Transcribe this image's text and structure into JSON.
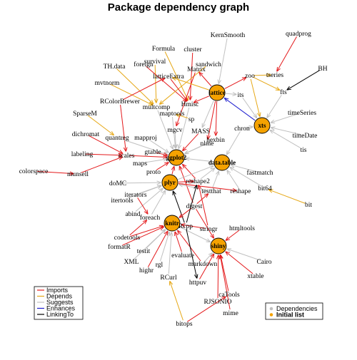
{
  "title": "Package dependency graph",
  "colors": {
    "Imports": "#e41a1c",
    "Depends": "#e6a817",
    "Suggests": "#c0c0c0",
    "Enhances": "#1f1fcf",
    "LinkingTo": "#000000",
    "initial_fill": "#f5a200",
    "dependency_dot": "#c0c0c0"
  },
  "edge_legend": [
    {
      "label": "Imports",
      "type": "Imports"
    },
    {
      "label": "Depends",
      "type": "Depends"
    },
    {
      "label": "Suggests",
      "type": "Suggests"
    },
    {
      "label": "Enhances",
      "type": "Enhances"
    },
    {
      "label": "LinkingTo",
      "type": "LinkingTo"
    }
  ],
  "node_legend": [
    {
      "label": "Dependencies",
      "kind": "dependency",
      "bold": false
    },
    {
      "label": "Initial list",
      "kind": "initial",
      "bold": true
    }
  ],
  "packages": [
    {
      "id": "ggplot2",
      "label": "ggplot2",
      "initial": true
    },
    {
      "id": "lattice",
      "label": "lattice",
      "initial": true
    },
    {
      "id": "xts",
      "label": "xts",
      "initial": true
    },
    {
      "id": "data.table",
      "label": "data.table",
      "initial": true
    },
    {
      "id": "plyr",
      "label": "plyr",
      "initial": true
    },
    {
      "id": "knitr",
      "label": "knitr",
      "initial": true
    },
    {
      "id": "shiny",
      "label": "shiny",
      "initial": true
    },
    {
      "id": "KernSmooth",
      "label": "KernSmooth"
    },
    {
      "id": "quadprog",
      "label": "quadprog"
    },
    {
      "id": "Formula",
      "label": "Formula"
    },
    {
      "id": "cluster",
      "label": "cluster"
    },
    {
      "id": "survival",
      "label": "survival"
    },
    {
      "id": "foreign",
      "label": "foreign"
    },
    {
      "id": "TH.data",
      "label": "TH.data"
    },
    {
      "id": "sandwich",
      "label": "sandwich"
    },
    {
      "id": "Matrix",
      "label": "Matrix"
    },
    {
      "id": "latticeExtra",
      "label": "latticeExtra"
    },
    {
      "id": "mvtnorm",
      "label": "mvtnorm"
    },
    {
      "id": "zoo",
      "label": "zoo"
    },
    {
      "id": "tseries",
      "label": "tseries"
    },
    {
      "id": "BH",
      "label": "BH"
    },
    {
      "id": "fts",
      "label": "fts"
    },
    {
      "id": "its",
      "label": "its"
    },
    {
      "id": "RColorBrewer",
      "label": "RColorBrewer"
    },
    {
      "id": "multcomp",
      "label": "multcomp"
    },
    {
      "id": "Hmisc",
      "label": "Hmisc"
    },
    {
      "id": "maptools",
      "label": "maptools"
    },
    {
      "id": "SparseM",
      "label": "SparseM"
    },
    {
      "id": "sp",
      "label": "sp"
    },
    {
      "id": "mgcv",
      "label": "mgcv"
    },
    {
      "id": "MASS",
      "label": "MASS"
    },
    {
      "id": "timeSeries",
      "label": "timeSeries"
    },
    {
      "id": "chron",
      "label": "chron"
    },
    {
      "id": "timeDate",
      "label": "timeDate"
    },
    {
      "id": "dichromat",
      "label": "dichromat"
    },
    {
      "id": "quantreg",
      "label": "quantreg"
    },
    {
      "id": "mapproj",
      "label": "mapproj"
    },
    {
      "id": "hexbin",
      "label": "hexbin"
    },
    {
      "id": "nlme",
      "label": "nlme"
    },
    {
      "id": "tis",
      "label": "tis"
    },
    {
      "id": "labeling",
      "label": "labeling"
    },
    {
      "id": "scales",
      "label": "scales"
    },
    {
      "id": "gtable",
      "label": "gtable"
    },
    {
      "id": "maps",
      "label": "maps"
    },
    {
      "id": "colorspace",
      "label": "colorspace"
    },
    {
      "id": "munsell",
      "label": "munsell"
    },
    {
      "id": "proto",
      "label": "proto"
    },
    {
      "id": "fastmatch",
      "label": "fastmatch"
    },
    {
      "id": "doMC",
      "label": "doMC"
    },
    {
      "id": "reshape2",
      "label": "reshape2"
    },
    {
      "id": "bit64",
      "label": "bit64"
    },
    {
      "id": "testthat",
      "label": "testthat"
    },
    {
      "id": "reshape",
      "label": "reshape"
    },
    {
      "id": "itertools",
      "label": "itertools"
    },
    {
      "id": "iterators",
      "label": "iterators"
    },
    {
      "id": "bit",
      "label": "bit"
    },
    {
      "id": "digest",
      "label": "digest"
    },
    {
      "id": "abind",
      "label": "abind"
    },
    {
      "id": "foreach",
      "label": "foreach"
    },
    {
      "id": "htmltools",
      "label": "htmltools"
    },
    {
      "id": "Rcpp",
      "label": "Rcpp"
    },
    {
      "id": "stringr",
      "label": "stringr"
    },
    {
      "id": "codetools",
      "label": "codetools"
    },
    {
      "id": "formatR",
      "label": "formatR"
    },
    {
      "id": "testit",
      "label": "testit"
    },
    {
      "id": "evaluate",
      "label": "evaluate"
    },
    {
      "id": "XML",
      "label": "XML"
    },
    {
      "id": "rgl",
      "label": "rgl"
    },
    {
      "id": "markdown",
      "label": "markdown"
    },
    {
      "id": "Cairo",
      "label": "Cairo"
    },
    {
      "id": "highr",
      "label": "highr"
    },
    {
      "id": "xtable",
      "label": "xtable"
    },
    {
      "id": "RCurl",
      "label": "RCurl"
    },
    {
      "id": "httpuv",
      "label": "httpuv"
    },
    {
      "id": "caTools",
      "label": "caTools"
    },
    {
      "id": "RJSONIO",
      "label": "RJSONIO"
    },
    {
      "id": "mime",
      "label": "mime"
    },
    {
      "id": "bitops",
      "label": "bitops"
    }
  ],
  "dependencies": [
    {
      "from": "KernSmooth",
      "to": "lattice",
      "type": "Suggests"
    },
    {
      "from": "quadprog",
      "to": "tseries",
      "type": "Imports"
    },
    {
      "from": "BH",
      "to": "fts",
      "type": "LinkingTo"
    },
    {
      "from": "Formula",
      "to": "Hmisc",
      "type": "Depends"
    },
    {
      "from": "cluster",
      "to": "Hmisc",
      "type": "Imports"
    },
    {
      "from": "survival",
      "to": "multcomp",
      "type": "Depends"
    },
    {
      "from": "foreign",
      "to": "Hmisc",
      "type": "Imports"
    },
    {
      "from": "TH.data",
      "to": "multcomp",
      "type": "Depends"
    },
    {
      "from": "sandwich",
      "to": "multcomp",
      "type": "Depends"
    },
    {
      "from": "Matrix",
      "to": "mgcv",
      "type": "Imports"
    },
    {
      "from": "latticeExtra",
      "to": "Hmisc",
      "type": "Imports"
    },
    {
      "from": "mvtnorm",
      "to": "multcomp",
      "type": "Depends"
    },
    {
      "from": "zoo",
      "to": "xts",
      "type": "Depends"
    },
    {
      "from": "zoo",
      "to": "tseries",
      "type": "Depends"
    },
    {
      "from": "zoo",
      "to": "fts",
      "type": "Depends"
    },
    {
      "from": "lattice",
      "to": "zoo",
      "type": "Imports"
    },
    {
      "from": "lattice",
      "to": "Matrix",
      "type": "Imports"
    },
    {
      "from": "lattice",
      "to": "latticeExtra",
      "type": "Depends"
    },
    {
      "from": "lattice",
      "to": "Hmisc",
      "type": "Imports"
    },
    {
      "from": "lattice",
      "to": "nlme",
      "type": "Imports"
    },
    {
      "from": "lattice",
      "to": "MASS",
      "type": "Suggests"
    },
    {
      "from": "lattice",
      "to": "hexbin",
      "type": "Imports"
    },
    {
      "from": "lattice",
      "to": "its",
      "type": "Suggests"
    },
    {
      "from": "xts",
      "to": "lattice",
      "type": "Enhances"
    },
    {
      "from": "RColorBrewer",
      "to": "latticeExtra",
      "type": "Imports"
    },
    {
      "from": "RColorBrewer",
      "to": "scales",
      "type": "Imports"
    },
    {
      "from": "Hmisc",
      "to": "ggplot2",
      "type": "Suggests"
    },
    {
      "from": "multcomp",
      "to": "ggplot2",
      "type": "Suggests"
    },
    {
      "from": "maptools",
      "to": "ggplot2",
      "type": "Suggests"
    },
    {
      "from": "SparseM",
      "to": "quantreg",
      "type": "Depends"
    },
    {
      "from": "sp",
      "to": "maptools",
      "type": "Depends"
    },
    {
      "from": "mgcv",
      "to": "ggplot2",
      "type": "Suggests"
    },
    {
      "from": "MASS",
      "to": "ggplot2",
      "type": "Imports"
    },
    {
      "from": "timeSeries",
      "to": "xts",
      "type": "Suggests"
    },
    {
      "from": "chron",
      "to": "xts",
      "type": "Suggests"
    },
    {
      "from": "timeDate",
      "to": "xts",
      "type": "Suggests"
    },
    {
      "from": "tis",
      "to": "xts",
      "type": "Suggests"
    },
    {
      "from": "its",
      "to": "xts",
      "type": "Suggests"
    },
    {
      "from": "fts",
      "to": "xts",
      "type": "Suggests"
    },
    {
      "from": "chron",
      "to": "data.table",
      "type": "Suggests"
    },
    {
      "from": "dichromat",
      "to": "scales",
      "type": "Imports"
    },
    {
      "from": "quantreg",
      "to": "ggplot2",
      "type": "Suggests"
    },
    {
      "from": "mapproj",
      "to": "ggplot2",
      "type": "Suggests"
    },
    {
      "from": "hexbin",
      "to": "ggplot2",
      "type": "Suggests"
    },
    {
      "from": "nlme",
      "to": "ggplot2",
      "type": "Suggests"
    },
    {
      "from": "labeling",
      "to": "scales",
      "type": "Imports"
    },
    {
      "from": "scales",
      "to": "ggplot2",
      "type": "Imports"
    },
    {
      "from": "gtable",
      "to": "ggplot2",
      "type": "Imports"
    },
    {
      "from": "maps",
      "to": "ggplot2",
      "type": "Suggests"
    },
    {
      "from": "colorspace",
      "to": "munsell",
      "type": "Imports"
    },
    {
      "from": "munsell",
      "to": "scales",
      "type": "Imports"
    },
    {
      "from": "proto",
      "to": "ggplot2",
      "type": "Imports"
    },
    {
      "from": "plyr",
      "to": "ggplot2",
      "type": "Imports"
    },
    {
      "from": "reshape2",
      "to": "ggplot2",
      "type": "Imports"
    },
    {
      "from": "digest",
      "to": "ggplot2",
      "type": "Imports"
    },
    {
      "from": "data.table",
      "to": "ggplot2",
      "type": "Suggests"
    },
    {
      "from": "fastmatch",
      "to": "data.table",
      "type": "Suggests"
    },
    {
      "from": "bit64",
      "to": "data.table",
      "type": "Suggests"
    },
    {
      "from": "reshape2",
      "to": "data.table",
      "type": "Suggests"
    },
    {
      "from": "plyr",
      "to": "data.table",
      "type": "Suggests"
    },
    {
      "from": "testthat",
      "to": "data.table",
      "type": "Suggests"
    },
    {
      "from": "reshape",
      "to": "data.table",
      "type": "Suggests"
    },
    {
      "from": "bit",
      "to": "bit64",
      "type": "Depends"
    },
    {
      "from": "doMC",
      "to": "plyr",
      "type": "Suggests"
    },
    {
      "from": "itertools",
      "to": "plyr",
      "type": "Suggests"
    },
    {
      "from": "iterators",
      "to": "plyr",
      "type": "Suggests"
    },
    {
      "from": "abind",
      "to": "plyr",
      "type": "Suggests"
    },
    {
      "from": "foreach",
      "to": "plyr",
      "type": "Suggests"
    },
    {
      "from": "testthat",
      "to": "plyr",
      "type": "Suggests"
    },
    {
      "from": "Rcpp",
      "to": "plyr",
      "type": "LinkingTo"
    },
    {
      "from": "plyr",
      "to": "reshape2",
      "type": "Imports"
    },
    {
      "from": "plyr",
      "to": "reshape",
      "type": "Imports"
    },
    {
      "from": "digest",
      "to": "testthat",
      "type": "Imports"
    },
    {
      "from": "digest",
      "to": "knitr",
      "type": "Imports"
    },
    {
      "from": "digest",
      "to": "shiny",
      "type": "Imports"
    },
    {
      "from": "stringr",
      "to": "reshape2",
      "type": "Imports"
    },
    {
      "from": "stringr",
      "to": "knitr",
      "type": "Imports"
    },
    {
      "from": "Rcpp",
      "to": "reshape2",
      "type": "LinkingTo"
    },
    {
      "from": "codetools",
      "to": "knitr",
      "type": "Imports"
    },
    {
      "from": "codetools",
      "to": "foreach",
      "type": "Imports"
    },
    {
      "from": "iterators",
      "to": "foreach",
      "type": "Imports"
    },
    {
      "from": "formatR",
      "to": "knitr",
      "type": "Imports"
    },
    {
      "from": "testit",
      "to": "knitr",
      "type": "Suggests"
    },
    {
      "from": "evaluate",
      "to": "knitr",
      "type": "Imports"
    },
    {
      "from": "XML",
      "to": "knitr",
      "type": "Suggests"
    },
    {
      "from": "rgl",
      "to": "knitr",
      "type": "Suggests"
    },
    {
      "from": "highr",
      "to": "knitr",
      "type": "Imports"
    },
    {
      "from": "markdown",
      "to": "knitr",
      "type": "Imports"
    },
    {
      "from": "markdown",
      "to": "shiny",
      "type": "Suggests"
    },
    {
      "from": "RCurl",
      "to": "knitr",
      "type": "Suggests"
    },
    {
      "from": "knitr",
      "to": "shiny",
      "type": "Suggests"
    },
    {
      "from": "htmltools",
      "to": "shiny",
      "type": "Imports"
    },
    {
      "from": "Cairo",
      "to": "shiny",
      "type": "Suggests"
    },
    {
      "from": "xtable",
      "to": "shiny",
      "type": "Imports"
    },
    {
      "from": "httpuv",
      "to": "shiny",
      "type": "Imports"
    },
    {
      "from": "caTools",
      "to": "shiny",
      "type": "Imports"
    },
    {
      "from": "RJSONIO",
      "to": "shiny",
      "type": "Imports"
    },
    {
      "from": "mime",
      "to": "shiny",
      "type": "Imports"
    },
    {
      "from": "Rcpp",
      "to": "httpuv",
      "type": "LinkingTo"
    },
    {
      "from": "bitops",
      "to": "RCurl",
      "type": "Depends"
    },
    {
      "from": "bitops",
      "to": "caTools",
      "type": "Imports"
    }
  ]
}
